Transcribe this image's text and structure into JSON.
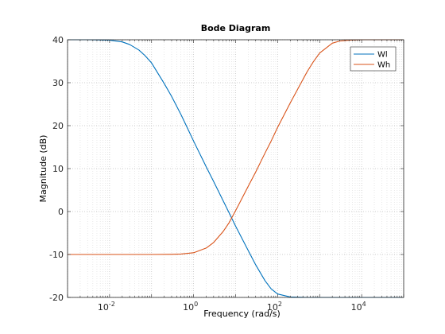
{
  "chart_data": {
    "type": "line",
    "title": "Bode Diagram",
    "xlabel": "Frequency  (rad/s)",
    "ylabel": "Magnitude (dB)",
    "xscale": "log",
    "xlim": [
      0.001,
      100000
    ],
    "ylim": [
      -20,
      40
    ],
    "yticks": [
      -20,
      -10,
      0,
      10,
      20,
      30,
      40
    ],
    "xticks": [
      {
        "value": 0.01,
        "base": "10",
        "exp": "-2"
      },
      {
        "value": 1,
        "base": "10",
        "exp": "0"
      },
      {
        "value": 100,
        "base": "10",
        "exp": "2"
      },
      {
        "value": 10000,
        "base": "10",
        "exp": "4"
      }
    ],
    "grid": true,
    "minor_grid": true,
    "legend": "top-right",
    "series": [
      {
        "name": "Wl",
        "color": "#0072BD",
        "points": [
          [
            0.001,
            40
          ],
          [
            0.003,
            40
          ],
          [
            0.01,
            39.9
          ],
          [
            0.02,
            39.5
          ],
          [
            0.03,
            38.9
          ],
          [
            0.05,
            37.6
          ],
          [
            0.07,
            36.3
          ],
          [
            0.1,
            34.6
          ],
          [
            0.2,
            29.8
          ],
          [
            0.3,
            26.8
          ],
          [
            0.5,
            22.6
          ],
          [
            0.7,
            19.6
          ],
          [
            1,
            16.4
          ],
          [
            2,
            10.4
          ],
          [
            3,
            7
          ],
          [
            5,
            2.6
          ],
          [
            7,
            -0.3
          ],
          [
            10,
            -3.4
          ],
          [
            20,
            -9.1
          ],
          [
            30,
            -12.4
          ],
          [
            50,
            -16.1
          ],
          [
            70,
            -18
          ],
          [
            100,
            -19.2
          ],
          [
            200,
            -19.9
          ],
          [
            500,
            -20
          ],
          [
            1000,
            -20
          ],
          [
            10000,
            -20
          ],
          [
            100000,
            -20
          ]
        ]
      },
      {
        "name": "Wh",
        "color": "#D95319",
        "points": [
          [
            0.001,
            -10
          ],
          [
            0.01,
            -10
          ],
          [
            0.1,
            -10
          ],
          [
            0.3,
            -9.96
          ],
          [
            0.5,
            -9.9
          ],
          [
            1,
            -9.6
          ],
          [
            2,
            -8.5
          ],
          [
            3,
            -7.2
          ],
          [
            5,
            -4.7
          ],
          [
            7,
            -2.6
          ],
          [
            10,
            0.2
          ],
          [
            20,
            5.9
          ],
          [
            30,
            9.2
          ],
          [
            50,
            13.6
          ],
          [
            70,
            16.4
          ],
          [
            100,
            19.6
          ],
          [
            200,
            25.3
          ],
          [
            300,
            28.5
          ],
          [
            500,
            32.5
          ],
          [
            700,
            34.8
          ],
          [
            1000,
            36.9
          ],
          [
            2000,
            39.2
          ],
          [
            3000,
            39.7
          ],
          [
            5000,
            39.9
          ],
          [
            10000,
            40
          ],
          [
            100000,
            40
          ]
        ]
      }
    ]
  }
}
